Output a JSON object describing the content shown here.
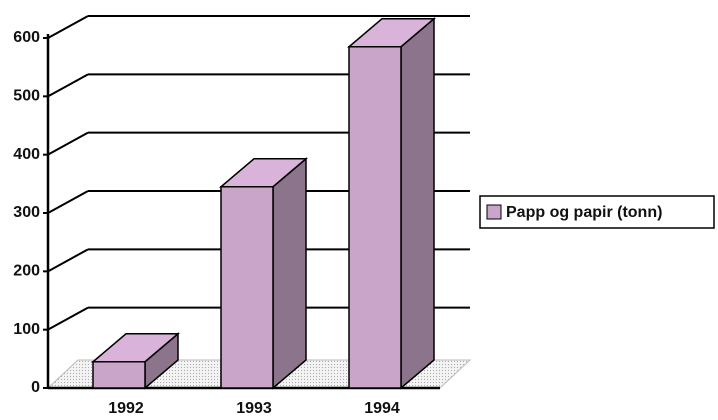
{
  "chart_data": {
    "type": "bar3d",
    "categories": [
      "1992",
      "1993",
      "1994"
    ],
    "series": [
      {
        "name": "Papp og papir (tonn)",
        "color": "#c9a6c9",
        "values": [
          45,
          345,
          585
        ]
      }
    ],
    "ylim": [
      0,
      600
    ],
    "yticks": [
      0,
      100,
      200,
      300,
      400,
      500,
      600
    ],
    "grid": true,
    "legend": "right"
  }
}
